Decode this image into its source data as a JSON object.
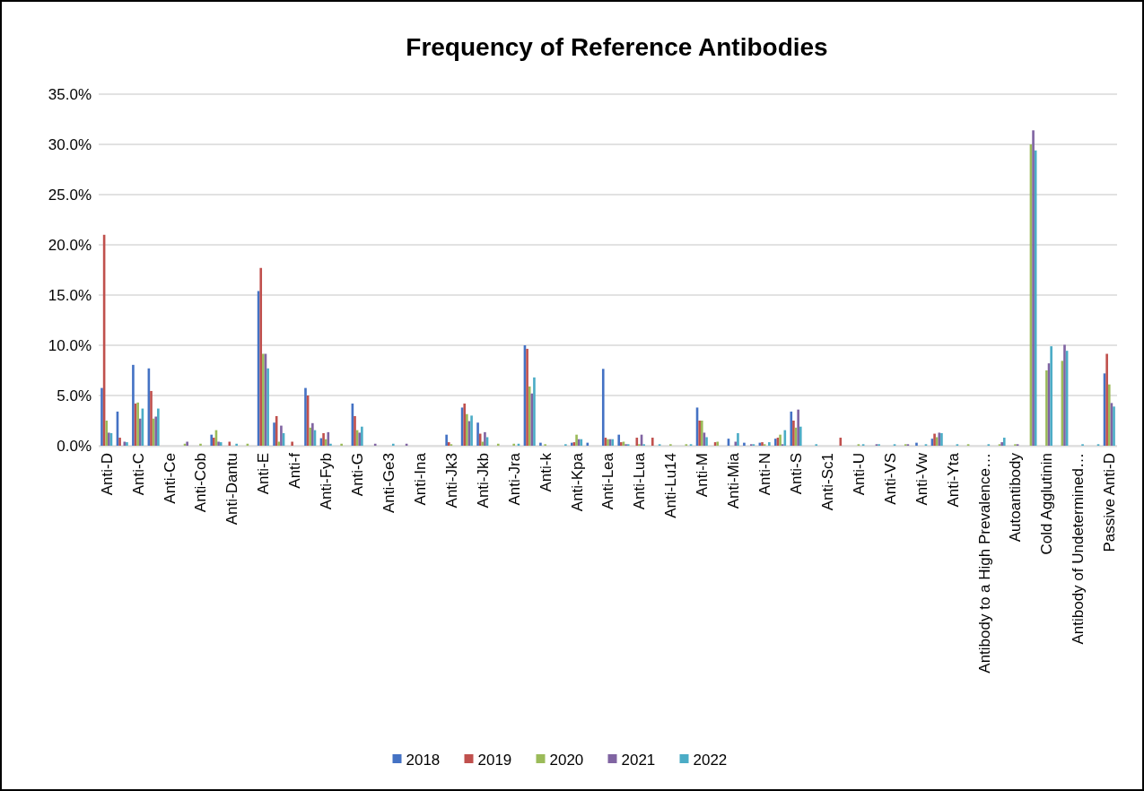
{
  "chart_data": {
    "type": "bar",
    "title": "Frequency of Reference Antibodies",
    "categories": [
      "Anti-D",
      null,
      "Anti-C",
      null,
      "Anti-Ce",
      null,
      "Anti-Cob",
      null,
      "Anti-Dantu",
      null,
      "Anti-E",
      null,
      "Anti-f",
      null,
      "Anti-Fyb",
      null,
      "Anti-G",
      null,
      "Anti-Ge3",
      null,
      "Anti-Ina",
      null,
      "Anti-Jk3",
      null,
      "Anti-Jkb",
      null,
      "Anti-Jra",
      null,
      "Anti-k",
      null,
      "Anti-Kpa",
      null,
      "Anti-Lea",
      null,
      "Anti-Lua",
      null,
      "Anti-Lu14",
      null,
      "Anti-M",
      null,
      "Anti-Mia",
      null,
      "Anti-N",
      null,
      "Anti-S",
      null,
      "Anti-Sc1",
      null,
      "Anti-U",
      null,
      "Anti-VS",
      null,
      "Anti-Vw",
      null,
      "Anti-Yta",
      null,
      "Antibody to a High Prevalence…",
      null,
      "Autoantibody",
      null,
      "Cold Agglutinin",
      null,
      "Antibody of Undetermined…",
      null,
      "Passive Anti-D"
    ],
    "series": [
      {
        "name": "2018",
        "color": "#4472c4",
        "values": [
          5.75,
          3.4,
          8.05,
          7.7,
          0,
          0,
          0,
          1.1,
          0,
          0,
          15.4,
          2.3,
          0,
          5.75,
          0.75,
          0,
          4.2,
          0,
          0,
          0,
          0,
          0,
          1.1,
          3.8,
          2.3,
          0,
          0,
          10.0,
          0.3,
          0,
          0.3,
          0.3,
          7.65,
          1.1,
          0,
          0,
          0,
          0,
          3.8,
          0,
          0.7,
          0.3,
          0.3,
          0.7,
          3.4,
          0,
          0,
          0,
          0,
          0,
          0,
          0,
          0.3,
          0.7,
          0,
          0,
          0,
          0,
          0,
          0,
          0,
          0,
          0,
          0,
          7.2
        ]
      },
      {
        "name": "2019",
        "color": "#c0504d",
        "values": [
          21.0,
          0.8,
          4.2,
          5.45,
          0,
          0,
          0,
          0.8,
          0.4,
          0,
          17.7,
          2.95,
          0.4,
          5.0,
          1.25,
          0,
          2.95,
          0,
          0,
          0,
          0,
          0,
          0.35,
          4.2,
          1.2,
          0,
          0,
          9.65,
          0,
          0,
          0.35,
          0,
          0.8,
          0.35,
          0.8,
          0.8,
          0,
          0,
          2.5,
          0.35,
          0,
          0,
          0.35,
          0.8,
          2.5,
          0,
          0,
          0.8,
          0,
          0,
          0,
          0,
          0,
          1.2,
          0,
          0,
          0,
          0,
          0,
          0,
          0,
          0,
          0,
          0,
          9.15
        ]
      },
      {
        "name": "2020",
        "color": "#9bbb59",
        "values": [
          2.5,
          0,
          4.3,
          2.7,
          0,
          0.2,
          0.2,
          1.55,
          0,
          0.2,
          9.15,
          0.4,
          0,
          1.8,
          0.65,
          0.2,
          1.55,
          0,
          0,
          0,
          0,
          0,
          0.15,
          3.15,
          0.4,
          0.2,
          0.2,
          5.9,
          0.15,
          0,
          1.1,
          0,
          0.65,
          0.4,
          0.15,
          0,
          0.15,
          0.15,
          2.5,
          0.4,
          0,
          0,
          0.15,
          1.1,
          1.8,
          0,
          0,
          0,
          0.15,
          0,
          0,
          0.15,
          0,
          0.85,
          0,
          0.15,
          0,
          0.15,
          0.15,
          30.0,
          7.5,
          8.45,
          0,
          0,
          6.1
        ]
      },
      {
        "name": "2021",
        "color": "#8064a2",
        "values": [
          1.3,
          0.4,
          2.7,
          2.9,
          0,
          0.4,
          0,
          0.4,
          0,
          0,
          9.15,
          2.0,
          0,
          2.25,
          1.35,
          0,
          1.3,
          0.2,
          0,
          0.2,
          0,
          0,
          0,
          2.45,
          1.35,
          0,
          0,
          5.2,
          0,
          0,
          0.65,
          0,
          0.65,
          0.15,
          1.1,
          0,
          0,
          0,
          1.3,
          0,
          0.4,
          0.15,
          0,
          0.15,
          3.6,
          0,
          0,
          0,
          0,
          0.15,
          0,
          0.15,
          0,
          1.3,
          0,
          0,
          0,
          0.35,
          0.15,
          31.4,
          8.2,
          10.05,
          0,
          0,
          4.25
        ]
      },
      {
        "name": "2022",
        "color": "#4bacc6",
        "values": [
          1.25,
          0.35,
          3.7,
          3.7,
          0,
          0,
          0,
          0.35,
          0.2,
          0,
          7.7,
          1.25,
          0,
          1.55,
          0.2,
          0,
          1.9,
          0,
          0.2,
          0,
          0,
          0,
          0,
          3.0,
          0.85,
          0,
          0.2,
          6.8,
          0,
          0.15,
          0.65,
          0,
          0.65,
          0.15,
          0.15,
          0.15,
          0,
          0.15,
          0.85,
          0,
          1.25,
          0.15,
          0.35,
          1.55,
          1.9,
          0.15,
          0,
          0,
          0.15,
          0.15,
          0.15,
          0,
          0.15,
          1.25,
          0.15,
          0,
          0.15,
          0.8,
          0,
          29.4,
          9.9,
          9.45,
          0.15,
          0.15,
          3.9
        ]
      }
    ],
    "ylim": [
      0,
      35
    ],
    "yticks": [
      {
        "value": 0,
        "label": "0.0%"
      },
      {
        "value": 5,
        "label": "5.0%"
      },
      {
        "value": 10,
        "label": "10.0%"
      },
      {
        "value": 15,
        "label": "15.0%"
      },
      {
        "value": 20,
        "label": "20.0%"
      },
      {
        "value": 25,
        "label": "25.0%"
      },
      {
        "value": 30,
        "label": "30.0%"
      },
      {
        "value": 35,
        "label": "35.0%"
      }
    ],
    "grid": "y",
    "legend": "bottom"
  }
}
